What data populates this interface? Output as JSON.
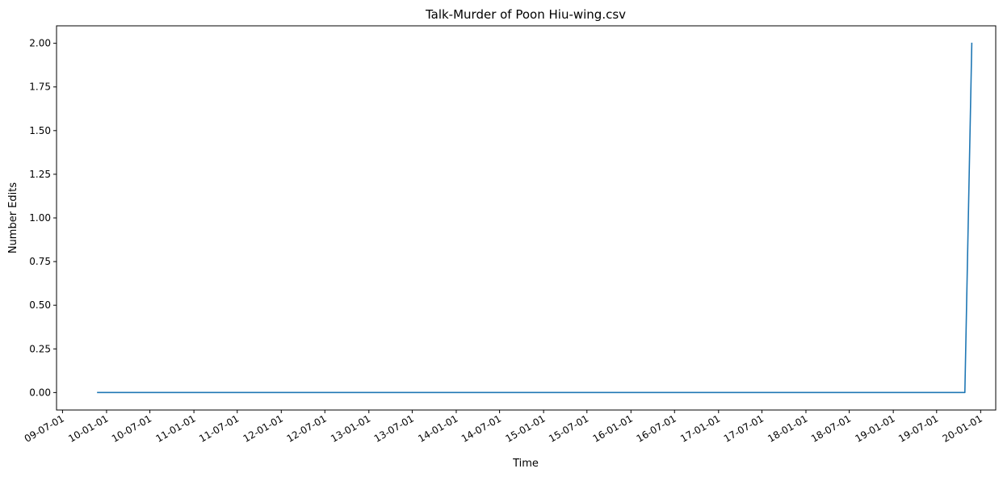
{
  "chart_data": {
    "type": "line",
    "title": "Talk-Murder of Poon Hiu-wing.csv",
    "xlabel": "Time",
    "ylabel": "Number Edits",
    "grid": false,
    "line_color": "#1f77b4",
    "x_range": [
      "2009-06-06",
      "2020-03-04"
    ],
    "ylim": [
      -0.1,
      2.1
    ],
    "x_ticks": [
      {
        "date": "2009-07-01",
        "label": "09-07-01"
      },
      {
        "date": "2010-01-01",
        "label": "10-01-01"
      },
      {
        "date": "2010-07-01",
        "label": "10-07-01"
      },
      {
        "date": "2011-01-01",
        "label": "11-01-01"
      },
      {
        "date": "2011-07-01",
        "label": "11-07-01"
      },
      {
        "date": "2012-01-01",
        "label": "12-01-01"
      },
      {
        "date": "2012-07-01",
        "label": "12-07-01"
      },
      {
        "date": "2013-01-01",
        "label": "13-01-01"
      },
      {
        "date": "2013-07-01",
        "label": "13-07-01"
      },
      {
        "date": "2014-01-01",
        "label": "14-01-01"
      },
      {
        "date": "2014-07-01",
        "label": "14-07-01"
      },
      {
        "date": "2015-01-01",
        "label": "15-01-01"
      },
      {
        "date": "2015-07-01",
        "label": "15-07-01"
      },
      {
        "date": "2016-01-01",
        "label": "16-01-01"
      },
      {
        "date": "2016-07-01",
        "label": "16-07-01"
      },
      {
        "date": "2017-01-01",
        "label": "17-01-01"
      },
      {
        "date": "2017-07-01",
        "label": "17-07-01"
      },
      {
        "date": "2018-01-01",
        "label": "18-01-01"
      },
      {
        "date": "2018-07-01",
        "label": "18-07-01"
      },
      {
        "date": "2019-01-01",
        "label": "19-01-01"
      },
      {
        "date": "2019-07-01",
        "label": "19-07-01"
      },
      {
        "date": "2020-01-01",
        "label": "20-01-01"
      }
    ],
    "y_ticks": [
      {
        "value": 0.0,
        "label": "0.00"
      },
      {
        "value": 0.25,
        "label": "0.25"
      },
      {
        "value": 0.5,
        "label": "0.50"
      },
      {
        "value": 0.75,
        "label": "0.75"
      },
      {
        "value": 1.0,
        "label": "1.00"
      },
      {
        "value": 1.25,
        "label": "1.25"
      },
      {
        "value": 1.5,
        "label": "1.50"
      },
      {
        "value": 1.75,
        "label": "1.75"
      },
      {
        "value": 2.0,
        "label": "2.00"
      }
    ],
    "series": [
      {
        "x": [
          "2009-11-25",
          "2019-10-27",
          "2019-11-25"
        ],
        "values": [
          0,
          0,
          2
        ]
      }
    ]
  }
}
